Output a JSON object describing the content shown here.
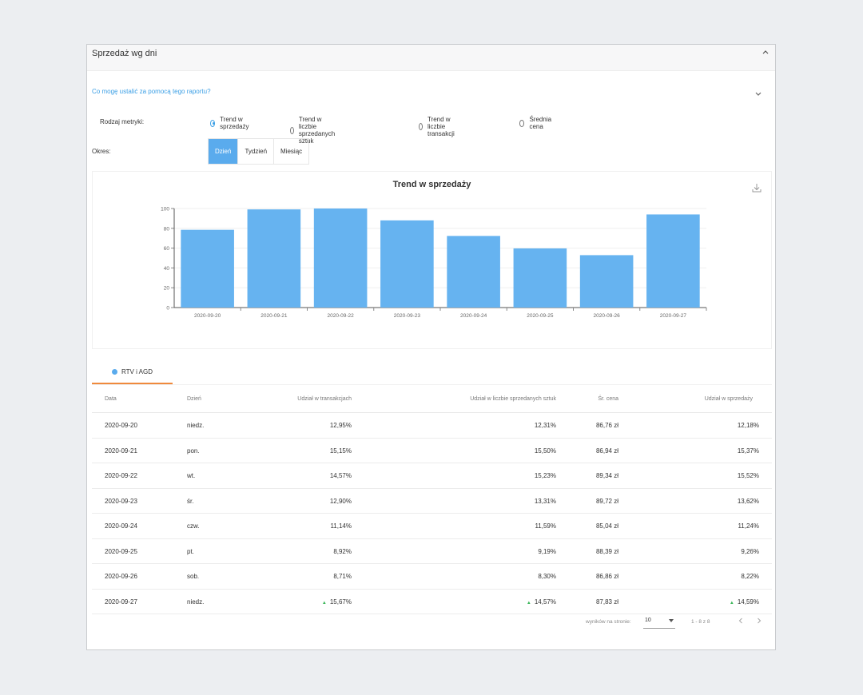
{
  "panel": {
    "title": "Sprzedaż wg dni",
    "help_link": "Co mogę ustalić za pomocą tego raportu?"
  },
  "controls": {
    "metric_label": "Rodzaj metryki:",
    "metric_options": [
      "Trend w sprzedaży",
      "Trend w liczbie sprzedanych sztuk",
      "Trend w liczbie transakcji",
      "Średnia cena"
    ],
    "selected_metric": "Trend w sprzedaży",
    "period_label": "Okres:",
    "period_options": [
      "Dzień",
      "Tydzień",
      "Miesiąc"
    ],
    "selected_period": "Dzień"
  },
  "chart_data": {
    "type": "bar",
    "title": "Trend w sprzedaży",
    "categories": [
      "2020-09-20",
      "2020-09-21",
      "2020-09-22",
      "2020-09-23",
      "2020-09-24",
      "2020-09-25",
      "2020-09-26",
      "2020-09-27"
    ],
    "values": [
      78.5,
      99.1,
      100,
      88,
      72.3,
      59.7,
      52.9,
      94
    ],
    "ylim": [
      0,
      100
    ],
    "yticks": [
      0,
      20,
      40,
      60,
      80,
      100
    ],
    "xlabel": "",
    "ylabel": "",
    "bar_color": "#66b3f0",
    "grid": true
  },
  "tab": {
    "label": "RTV i AGD",
    "dot_color": "#5aabed",
    "underline_color": "#f08a3c"
  },
  "table": {
    "columns": [
      "Data",
      "Dzień",
      "Udział w transakcjach",
      "Udział w liczbie sprzedanych sztuk",
      "Śr. cena",
      "Udział w sprzedaży"
    ],
    "rows": [
      {
        "date": "2020-09-20",
        "day": "niedz.",
        "tx": "12,95%",
        "units": "12,31%",
        "price": "86,76 zł",
        "sales": "12,18%",
        "up": false
      },
      {
        "date": "2020-09-21",
        "day": "pon.",
        "tx": "15,15%",
        "units": "15,50%",
        "price": "86,94 zł",
        "sales": "15,37%",
        "up": false
      },
      {
        "date": "2020-09-22",
        "day": "wt.",
        "tx": "14,57%",
        "units": "15,23%",
        "price": "89,34 zł",
        "sales": "15,52%",
        "up": false
      },
      {
        "date": "2020-09-23",
        "day": "śr.",
        "tx": "12,90%",
        "units": "13,31%",
        "price": "89,72 zł",
        "sales": "13,62%",
        "up": false
      },
      {
        "date": "2020-09-24",
        "day": "czw.",
        "tx": "11,14%",
        "units": "11,59%",
        "price": "85,04 zł",
        "sales": "11,24%",
        "up": false
      },
      {
        "date": "2020-09-25",
        "day": "pt.",
        "tx": "8,92%",
        "units": "9,19%",
        "price": "88,39 zł",
        "sales": "9,26%",
        "up": false
      },
      {
        "date": "2020-09-26",
        "day": "sob.",
        "tx": "8,71%",
        "units": "8,30%",
        "price": "86,86 zł",
        "sales": "8,22%",
        "up": false
      },
      {
        "date": "2020-09-27",
        "day": "niedz.",
        "tx": "15,67%",
        "units": "14,57%",
        "price": "87,83 zł",
        "sales": "14,59%",
        "up": true
      }
    ],
    "up_indicator": "▲",
    "up_color": "#3bb75a"
  },
  "pagination": {
    "per_page_label": "wyników na stronie:",
    "per_page_value": "10",
    "range": "1 - 8 z 8"
  },
  "icons": {
    "collapse": "chevron-up-icon",
    "expand": "chevron-down-icon",
    "download": "download-icon",
    "prev": "chevron-left-icon",
    "next": "chevron-right-icon"
  }
}
